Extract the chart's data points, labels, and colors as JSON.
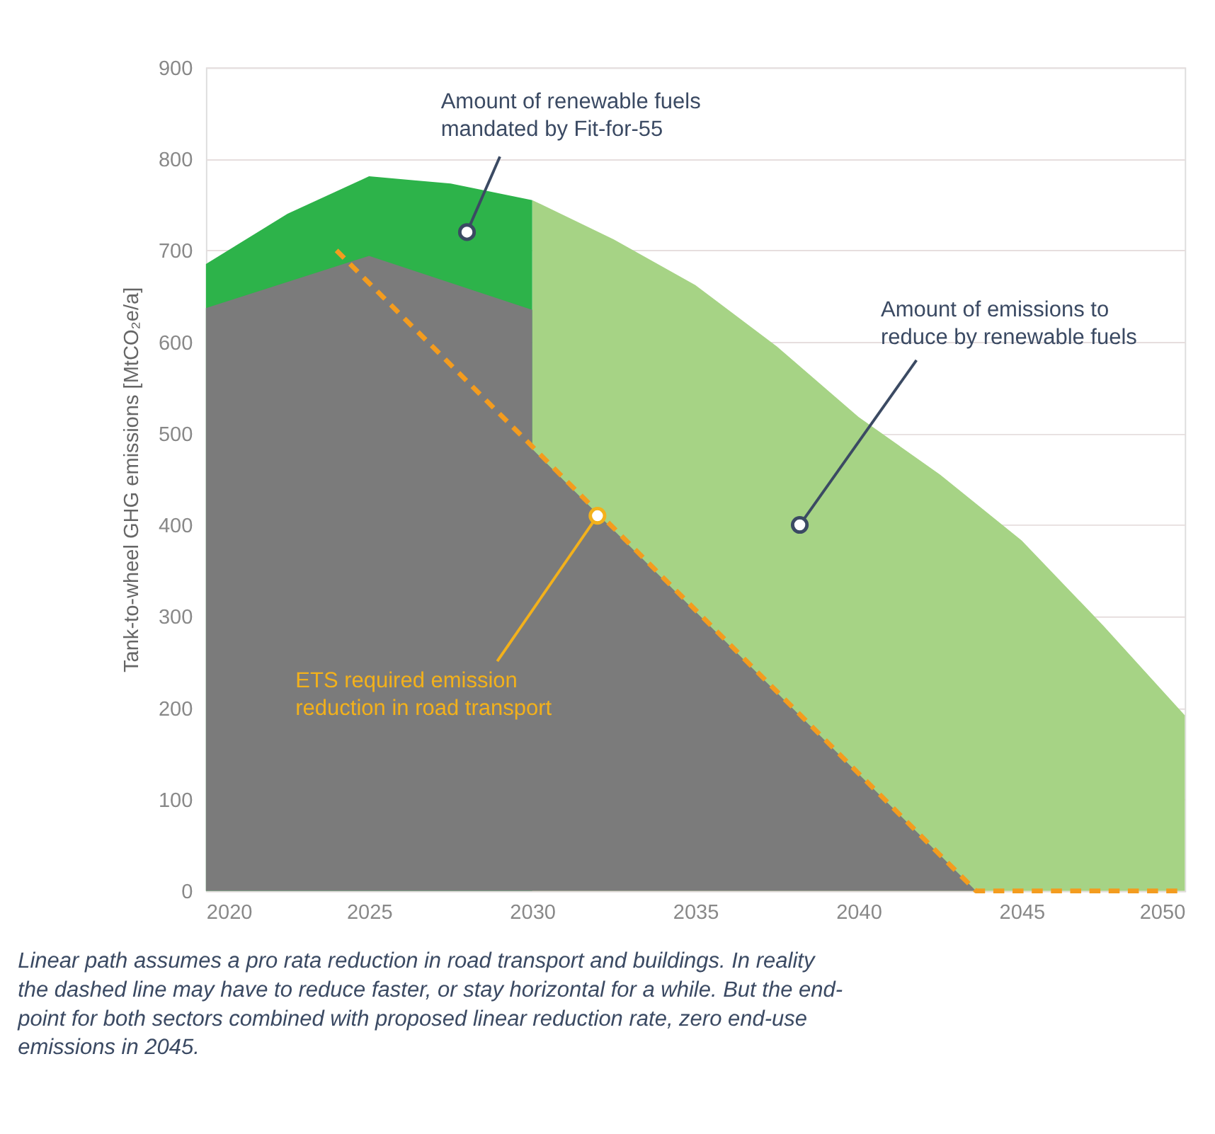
{
  "chart_data": {
    "type": "area",
    "ylabel": "Tank-to-wheel GHG emissions [MtCO₂e/a]",
    "xlim": [
      2020,
      2050
    ],
    "xticks": [
      2020,
      2025,
      2030,
      2035,
      2040,
      2045,
      2050
    ],
    "ylim": [
      0,
      900
    ],
    "yticks": [
      0,
      100,
      200,
      300,
      400,
      500,
      600,
      700,
      800,
      900
    ],
    "grid": "y",
    "series": [
      {
        "type": "area",
        "color": "#a6d385",
        "x": [
          2030,
          2032.5,
          2035,
          2037.5,
          2040,
          2042.5,
          2045,
          2047.5,
          2050
        ],
        "values": [
          755,
          712,
          662,
          595,
          518,
          455,
          383,
          290,
          192
        ]
      },
      {
        "type": "area",
        "color": "#2db34a",
        "x": [
          2020,
          2022.5,
          2025,
          2027.5,
          2030
        ],
        "values": [
          685,
          740,
          781,
          773,
          755
        ]
      },
      {
        "type": "area",
        "color": "#7b7b7b",
        "x": [
          2020,
          2025,
          2030,
          2030,
          2043.6,
          2050
        ],
        "values": [
          637,
          694,
          635,
          483,
          0,
          0
        ]
      },
      {
        "type": "line",
        "line_style": "dashed",
        "color": "#f39c1f",
        "x": [
          2024,
          2043.6,
          2050
        ],
        "values": [
          700,
          0,
          0
        ]
      }
    ],
    "annotations": [
      {
        "text": "Amount of renewable fuels\nmandated by Fit-for-55",
        "x": 2028,
        "y": 720
      },
      {
        "text": "Amount of emissions to\nreduce by renewable fuels",
        "x": 2038.2,
        "y": 400
      },
      {
        "text": "ETS required emission\nreduction in road transport",
        "x": 2032,
        "y": 410
      },
      "Linear path assumes a pro rata reduction in road transport and buildings. In reality\nthe dashed line may have to reduce faster, or stay horizontal for a while. But the end-\npoint for both sectors combined with proposed linear reduction rate, zero end-use\nemissions in 2045."
    ]
  }
}
